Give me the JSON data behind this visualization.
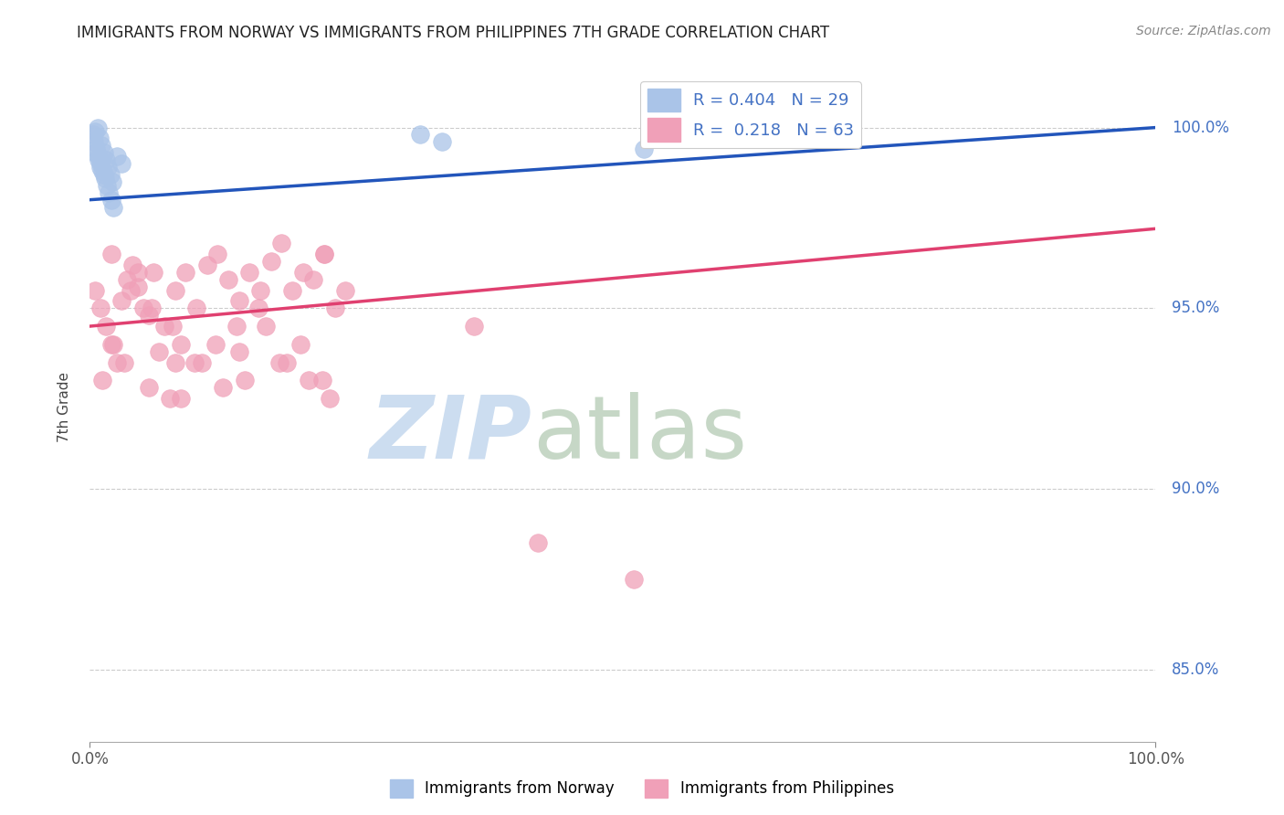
{
  "title": "IMMIGRANTS FROM NORWAY VS IMMIGRANTS FROM PHILIPPINES 7TH GRADE CORRELATION CHART",
  "source": "Source: ZipAtlas.com",
  "ylabel": "7th Grade",
  "xlim": [
    0,
    100
  ],
  "ylim": [
    83,
    101.5
  ],
  "norway_color": "#aac4e8",
  "norway_edge_color": "#aac4e8",
  "norway_line_color": "#2255bb",
  "philippines_color": "#f0a0b8",
  "philippines_edge_color": "#f0a0b8",
  "philippines_line_color": "#e04070",
  "norway_R": 0.404,
  "norway_N": 29,
  "philippines_R": 0.218,
  "philippines_N": 63,
  "background_color": "#ffffff",
  "grid_color": "#cccccc",
  "ytick_color": "#4472c4",
  "title_color": "#222222",
  "source_color": "#888888",
  "norway_x": [
    0.3,
    0.5,
    0.7,
    0.9,
    1.1,
    1.3,
    1.5,
    1.7,
    1.9,
    2.1,
    0.4,
    0.6,
    0.8,
    1.0,
    1.2,
    1.4,
    1.6,
    1.8,
    2.0,
    2.2,
    0.5,
    0.8,
    1.0,
    1.3,
    2.5,
    3.0,
    31.0,
    33.0,
    52.0
  ],
  "norway_y": [
    99.8,
    99.9,
    100.0,
    99.7,
    99.5,
    99.3,
    99.1,
    98.9,
    98.7,
    98.5,
    99.6,
    99.4,
    99.2,
    99.0,
    98.8,
    98.6,
    98.4,
    98.2,
    98.0,
    97.8,
    99.3,
    99.1,
    98.9,
    98.7,
    99.2,
    99.0,
    99.8,
    99.6,
    99.4
  ],
  "philippines_x": [
    0.5,
    1.0,
    1.5,
    2.0,
    2.5,
    3.0,
    3.5,
    4.0,
    4.5,
    5.0,
    5.5,
    6.0,
    7.0,
    8.0,
    9.0,
    10.0,
    11.0,
    12.0,
    13.0,
    14.0,
    15.0,
    16.0,
    17.0,
    18.0,
    19.0,
    20.0,
    21.0,
    22.0,
    23.0,
    24.0,
    1.2,
    2.2,
    3.2,
    5.5,
    7.5,
    8.5,
    10.5,
    12.5,
    14.5,
    16.5,
    18.5,
    20.5,
    22.5,
    3.8,
    5.8,
    7.8,
    9.8,
    11.8,
    13.8,
    15.8,
    17.8,
    19.8,
    21.8,
    6.5,
    8.5,
    2.0,
    4.5,
    8.0,
    14.0,
    22.0,
    36.0,
    42.0,
    51.0
  ],
  "philippines_y": [
    95.5,
    95.0,
    94.5,
    94.0,
    93.5,
    95.2,
    95.8,
    96.2,
    95.6,
    95.0,
    94.8,
    96.0,
    94.5,
    95.5,
    96.0,
    95.0,
    96.2,
    96.5,
    95.8,
    95.2,
    96.0,
    95.5,
    96.3,
    96.8,
    95.5,
    96.0,
    95.8,
    96.5,
    95.0,
    95.5,
    93.0,
    94.0,
    93.5,
    92.8,
    92.5,
    94.0,
    93.5,
    92.8,
    93.0,
    94.5,
    93.5,
    93.0,
    92.5,
    95.5,
    95.0,
    94.5,
    93.5,
    94.0,
    94.5,
    95.0,
    93.5,
    94.0,
    93.0,
    93.8,
    92.5,
    96.5,
    96.0,
    93.5,
    93.8,
    96.5,
    94.5,
    88.5,
    87.5
  ]
}
